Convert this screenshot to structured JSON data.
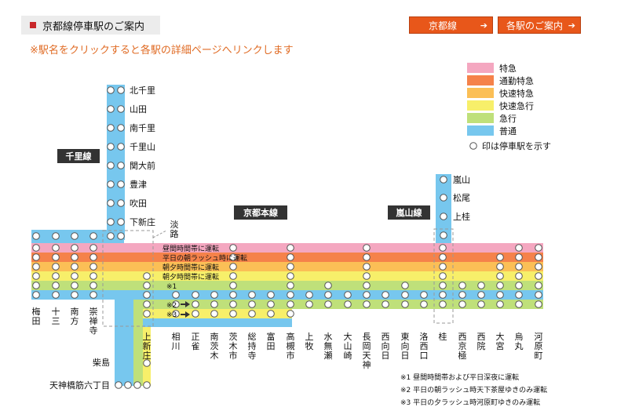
{
  "header": {
    "title": "京都線停車駅のご案内",
    "btn_kyoto_line": "京都線",
    "btn_station_guide": "各駅のご案内",
    "notice": "※駅名をクリックすると各駅の詳細ページへリンクします"
  },
  "legend": {
    "items": [
      {
        "label": "特急",
        "color": "#f4a7c0"
      },
      {
        "label": "通勤特急",
        "color": "#f5824a"
      },
      {
        "label": "快速特急",
        "color": "#fbbf56"
      },
      {
        "label": "快速急行",
        "color": "#f7ef6a"
      },
      {
        "label": "急行",
        "color": "#bfe07a"
      },
      {
        "label": "普通",
        "color": "#77c7ee"
      }
    ],
    "stop_note": "印は停車駅を示す"
  },
  "line_labels": {
    "senri": "千里線",
    "kyoto_main": "京都本線",
    "arashiyama": "嵐山線",
    "awaji": "淡路"
  },
  "senri_stations": [
    "北千里",
    "山田",
    "南千里",
    "千里山",
    "関大前",
    "豊津",
    "吹田",
    "下新庄"
  ],
  "arashiyama_stations": [
    "嵐山",
    "松尾",
    "上桂"
  ],
  "main_stations": [
    "梅田",
    "十三",
    "南方",
    "崇禅寺",
    "上新庄",
    "相川",
    "正雀",
    "南茨木",
    "茨木市",
    "総持寺",
    "富田",
    "高槻市",
    "上牧",
    "水無瀬",
    "大山崎",
    "長岡天神",
    "西向日",
    "東向日",
    "洛西口",
    "桂",
    "西京極",
    "西院",
    "大宮",
    "烏丸",
    "河原町"
  ],
  "sakaisuji_stations": [
    "柴島",
    "天神橋筋六丁目"
  ],
  "band_notes": {
    "tokkyu": "昼間時間帯に運転",
    "tsukin": "平日の朝ラッシュ時に運転",
    "kaisoku_tokkyu": "朝夕時間帯に運転",
    "kaisoku_kyuko": "朝夕時間帯に運転",
    "kyuko": "※1",
    "note2_mark": "※2",
    "note3_mark": "※3"
  },
  "footnotes": [
    "※1 昼間時間帯および平日深夜に運転",
    "※2 平日の朝ラッシュ時天下茶屋ゆきのみ運転",
    "※3 平日の夕ラッシュ時河原町ゆきのみ運転"
  ]
}
